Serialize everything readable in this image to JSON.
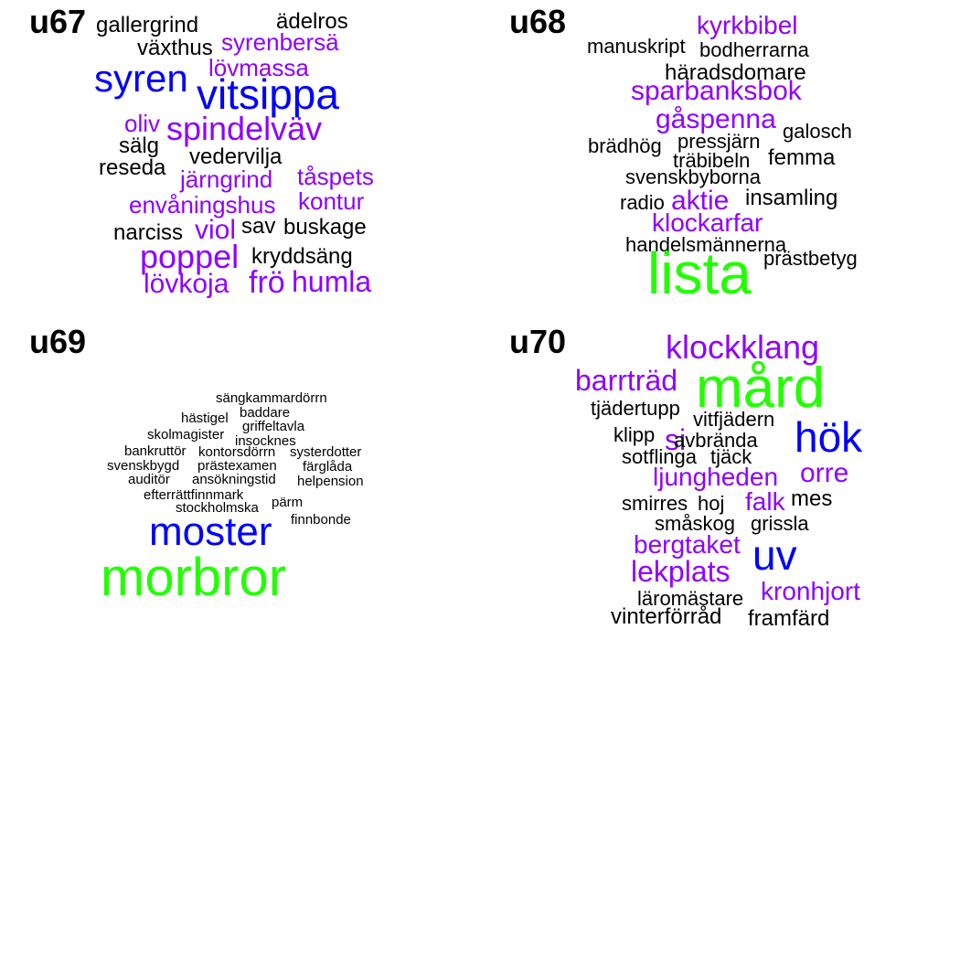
{
  "colors": {
    "black": "#000000",
    "purple": "#8f00ff",
    "blue": "#0000ff",
    "green": "#21ff00"
  },
  "panels": [
    {
      "title": "u67",
      "words": [
        {
          "text": "gallergrind",
          "size": 24,
          "color": "black"
        },
        {
          "text": "ädelros",
          "size": 24,
          "color": "black"
        },
        {
          "text": "växthus",
          "size": 24,
          "color": "black"
        },
        {
          "text": "syrenbersä",
          "size": 26,
          "color": "purple"
        },
        {
          "text": "lövmassa",
          "size": 26,
          "color": "purple"
        },
        {
          "text": "syren",
          "size": 42,
          "color": "blue"
        },
        {
          "text": "vitsippa",
          "size": 46,
          "color": "blue"
        },
        {
          "text": "oliv",
          "size": 26,
          "color": "purple"
        },
        {
          "text": "spindelväv",
          "size": 36,
          "color": "purple"
        },
        {
          "text": "sälg",
          "size": 24,
          "color": "black"
        },
        {
          "text": "vedervilja",
          "size": 24,
          "color": "black"
        },
        {
          "text": "reseda",
          "size": 24,
          "color": "black"
        },
        {
          "text": "järngrind",
          "size": 26,
          "color": "purple"
        },
        {
          "text": "tåspets",
          "size": 26,
          "color": "purple"
        },
        {
          "text": "envåningshus",
          "size": 26,
          "color": "purple"
        },
        {
          "text": "kontur",
          "size": 26,
          "color": "purple"
        },
        {
          "text": "narciss",
          "size": 24,
          "color": "black"
        },
        {
          "text": "viol",
          "size": 30,
          "color": "purple"
        },
        {
          "text": "sav",
          "size": 24,
          "color": "black"
        },
        {
          "text": "buskage",
          "size": 24,
          "color": "black"
        },
        {
          "text": "poppel",
          "size": 36,
          "color": "purple"
        },
        {
          "text": "kryddsäng",
          "size": 24,
          "color": "black"
        },
        {
          "text": "lövkoja",
          "size": 30,
          "color": "purple"
        },
        {
          "text": "frö",
          "size": 34,
          "color": "purple"
        },
        {
          "text": "humla",
          "size": 32,
          "color": "purple"
        }
      ]
    },
    {
      "title": "u68",
      "words": [
        {
          "text": "kyrkbibel",
          "size": 28,
          "color": "purple"
        },
        {
          "text": "manuskript",
          "size": 22,
          "color": "black"
        },
        {
          "text": "bodherrarna",
          "size": 22,
          "color": "black"
        },
        {
          "text": "häradsdomare",
          "size": 24,
          "color": "black"
        },
        {
          "text": "sparbanksbok",
          "size": 30,
          "color": "purple"
        },
        {
          "text": "gåspenna",
          "size": 30,
          "color": "purple"
        },
        {
          "text": "galosch",
          "size": 22,
          "color": "black"
        },
        {
          "text": "brädhög",
          "size": 22,
          "color": "black"
        },
        {
          "text": "pressjärn",
          "size": 22,
          "color": "black"
        },
        {
          "text": "träbibeln",
          "size": 22,
          "color": "black"
        },
        {
          "text": "femma",
          "size": 24,
          "color": "black"
        },
        {
          "text": "svenskbyborna",
          "size": 22,
          "color": "black"
        },
        {
          "text": "radio",
          "size": 22,
          "color": "black"
        },
        {
          "text": "aktie",
          "size": 30,
          "color": "purple"
        },
        {
          "text": "insamling",
          "size": 24,
          "color": "black"
        },
        {
          "text": "klockarfar",
          "size": 28,
          "color": "purple"
        },
        {
          "text": "handelsmännerna",
          "size": 22,
          "color": "black"
        },
        {
          "text": "lista",
          "size": 64,
          "color": "green"
        },
        {
          "text": "prästbetyg",
          "size": 22,
          "color": "black"
        }
      ]
    },
    {
      "title": "u69",
      "words": [
        {
          "text": "sängkammardörrn",
          "size": 15,
          "color": "black"
        },
        {
          "text": "hästigel",
          "size": 15,
          "color": "black"
        },
        {
          "text": "baddare",
          "size": 15,
          "color": "black"
        },
        {
          "text": "griffeltavla",
          "size": 15,
          "color": "black"
        },
        {
          "text": "skolmagister",
          "size": 15,
          "color": "black"
        },
        {
          "text": "insocknes",
          "size": 15,
          "color": "black"
        },
        {
          "text": "bankruttör",
          "size": 15,
          "color": "black"
        },
        {
          "text": "kontorsdörrn",
          "size": 15,
          "color": "black"
        },
        {
          "text": "systerdotter",
          "size": 15,
          "color": "black"
        },
        {
          "text": "svenskbygd",
          "size": 15,
          "color": "black"
        },
        {
          "text": "prästexamen",
          "size": 15,
          "color": "black"
        },
        {
          "text": "färglåda",
          "size": 15,
          "color": "black"
        },
        {
          "text": "auditör",
          "size": 15,
          "color": "black"
        },
        {
          "text": "ansökningstid",
          "size": 15,
          "color": "black"
        },
        {
          "text": "helpension",
          "size": 15,
          "color": "black"
        },
        {
          "text": "efterrättfinnmark",
          "size": 15,
          "color": "black"
        },
        {
          "text": "pärm",
          "size": 15,
          "color": "black"
        },
        {
          "text": "stockholmska",
          "size": 15,
          "color": "black"
        },
        {
          "text": "finnbonde",
          "size": 15,
          "color": "black"
        },
        {
          "text": "moster",
          "size": 44,
          "color": "blue"
        },
        {
          "text": "morbror",
          "size": 58,
          "color": "green"
        }
      ]
    },
    {
      "title": "u70",
      "words": [
        {
          "text": "klockklang",
          "size": 36,
          "color": "purple"
        },
        {
          "text": "barrträd",
          "size": 32,
          "color": "purple"
        },
        {
          "text": "mård",
          "size": 62,
          "color": "green"
        },
        {
          "text": "tjädertupp",
          "size": 22,
          "color": "black"
        },
        {
          "text": "vitfjädern",
          "size": 22,
          "color": "black"
        },
        {
          "text": "klipp",
          "size": 22,
          "color": "black"
        },
        {
          "text": "si",
          "size": 32,
          "color": "purple"
        },
        {
          "text": "avbrända",
          "size": 22,
          "color": "black"
        },
        {
          "text": "hök",
          "size": 46,
          "color": "blue"
        },
        {
          "text": "sotflinga",
          "size": 22,
          "color": "black"
        },
        {
          "text": "tjäck",
          "size": 22,
          "color": "black"
        },
        {
          "text": "ljungheden",
          "size": 28,
          "color": "purple"
        },
        {
          "text": "orre",
          "size": 30,
          "color": "purple"
        },
        {
          "text": "smirres",
          "size": 22,
          "color": "black"
        },
        {
          "text": "hoj",
          "size": 22,
          "color": "black"
        },
        {
          "text": "falk",
          "size": 28,
          "color": "purple"
        },
        {
          "text": "mes",
          "size": 24,
          "color": "black"
        },
        {
          "text": "småskog",
          "size": 22,
          "color": "black"
        },
        {
          "text": "grissla",
          "size": 22,
          "color": "black"
        },
        {
          "text": "bergtaket",
          "size": 28,
          "color": "purple"
        },
        {
          "text": "uv",
          "size": 46,
          "color": "blue"
        },
        {
          "text": "lekplats",
          "size": 32,
          "color": "purple"
        },
        {
          "text": "läromästare",
          "size": 22,
          "color": "black"
        },
        {
          "text": "kronhjort",
          "size": 28,
          "color": "purple"
        },
        {
          "text": "vinterförråd",
          "size": 24,
          "color": "black"
        },
        {
          "text": "framfärd",
          "size": 24,
          "color": "black"
        }
      ]
    }
  ]
}
